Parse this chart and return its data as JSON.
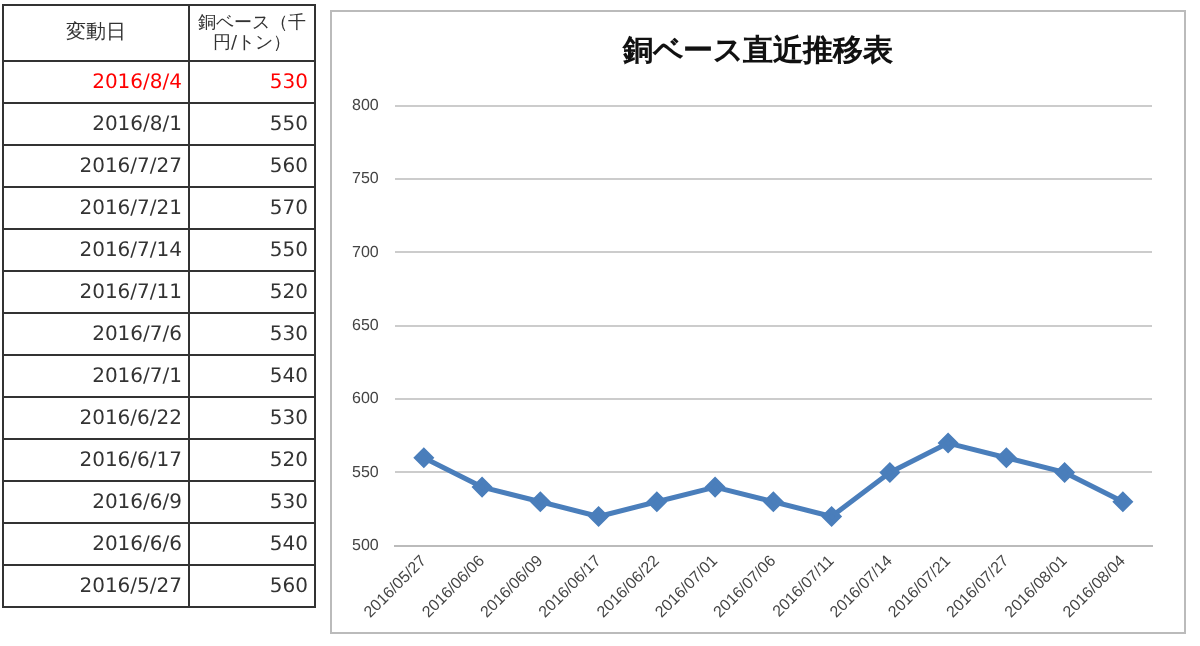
{
  "chart_data": [
    {
      "type": "other",
      "xlabel": "変動日",
      "ylabel": "銅ベース（千円/トン）",
      "categories": [
        "2016/8/4",
        "2016/8/1",
        "2016/7/27",
        "2016/7/21",
        "2016/7/14",
        "2016/7/11",
        "2016/7/6",
        "2016/7/1",
        "2016/6/22",
        "2016/6/17",
        "2016/6/9",
        "2016/6/6",
        "2016/5/27"
      ],
      "values": [
        530,
        550,
        560,
        570,
        550,
        520,
        530,
        540,
        530,
        520,
        530,
        540,
        560
      ],
      "data_labels": true,
      "colors": [
        "#ff0000",
        "#333333",
        "#333333",
        "#333333",
        "#333333",
        "#333333",
        "#333333",
        "#333333",
        "#333333",
        "#333333",
        "#333333",
        "#333333",
        "#333333"
      ]
    },
    {
      "type": "line",
      "title": "銅ベース直近推移表",
      "categories": [
        "2016/05/27",
        "2016/06/06",
        "2016/06/09",
        "2016/06/17",
        "2016/06/22",
        "2016/07/01",
        "2016/07/06",
        "2016/07/11",
        "2016/07/14",
        "2016/07/21",
        "2016/07/27",
        "2016/08/01",
        "2016/08/04"
      ],
      "series": [
        {
          "color": "#4a7ebb",
          "values": [
            560,
            540,
            530,
            520,
            530,
            540,
            530,
            520,
            550,
            570,
            560,
            550,
            530
          ]
        }
      ],
      "ylim": [
        500,
        800
      ],
      "yticks": [
        500,
        550,
        600,
        650,
        700,
        750,
        800
      ],
      "grid": "y",
      "legend": false,
      "marker": "diamond",
      "line_style": "solid"
    }
  ]
}
